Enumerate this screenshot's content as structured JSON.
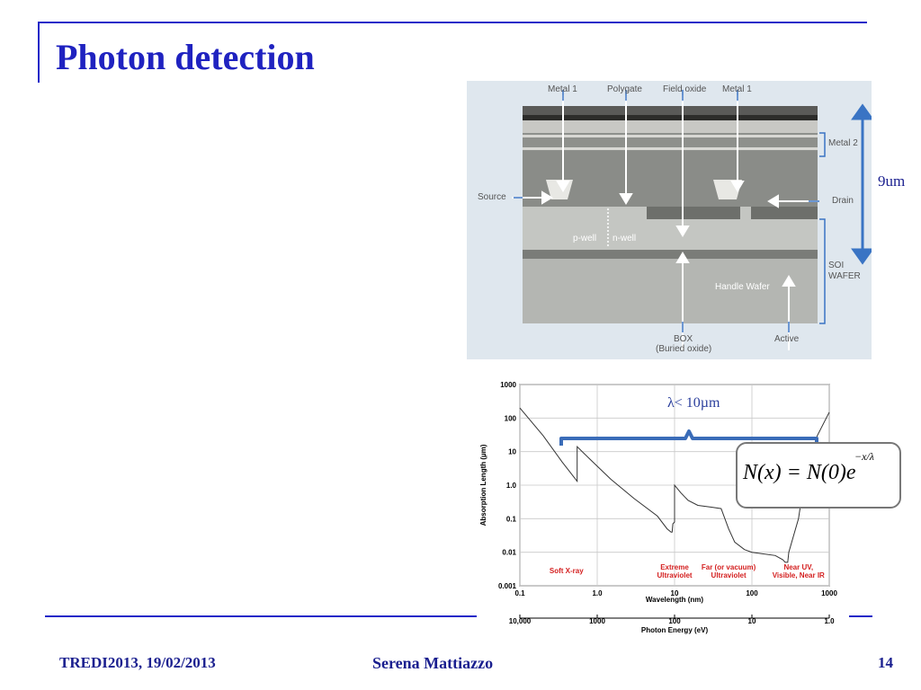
{
  "slide": {
    "title": "Photon detection",
    "footer_left": "TREDI2013, 19/02/2013",
    "footer_center": "Serena Mattiazzo",
    "page_number": "14"
  },
  "cross_section": {
    "labels_top": [
      "Metal 1",
      "Polygate",
      "Field oxide",
      "Metal 1"
    ],
    "label_metal2": "Metal 2",
    "label_source": "Source",
    "label_drain": "Drain",
    "label_pwell": "p-well",
    "label_nwell": "n-well",
    "label_soi": "SOI",
    "label_wafer": "WAFER",
    "label_handle": "Handle Wafer",
    "label_box": "BOX",
    "label_box_sub": "(Buried oxide)",
    "label_active": "Active",
    "dimension": "9um"
  },
  "chart_data": {
    "type": "line",
    "xlabel": "Wavelength (nm)",
    "x2label": "Photon Energy (eV)",
    "ylabel": "Absorption Length (µm)",
    "x_scale": "log",
    "y_scale": "log",
    "xlim": [
      0.1,
      1000
    ],
    "ylim": [
      0.001,
      1000
    ],
    "x_ticks": [
      "0.1",
      "1.0",
      "10",
      "100",
      "1000"
    ],
    "x2_ticks": [
      "10,000",
      "1000",
      "100",
      "10",
      "1.0"
    ],
    "y_ticks": [
      "1000",
      "100",
      "10",
      "1.0",
      "0.1",
      "0.01",
      "0.001"
    ],
    "regions": [
      {
        "lines": [
          "Soft X-ray"
        ],
        "x": 0.4
      },
      {
        "lines": [
          "Extreme",
          "Ultraviolet"
        ],
        "x": 10
      },
      {
        "lines": [
          "Far (or vacuum)",
          "Ultraviolet"
        ],
        "x": 50
      },
      {
        "lines": [
          "Near UV,",
          "Visible, Near IR"
        ],
        "x": 400
      }
    ],
    "series": [
      {
        "x": [
          0.1,
          0.2,
          0.35,
          0.55,
          0.55,
          0.8,
          1.5,
          3,
          6,
          8,
          9,
          9.3,
          9.5,
          10,
          10,
          12,
          15,
          20,
          30,
          40,
          50,
          60,
          80,
          100,
          200,
          250,
          270,
          290,
          300,
          400,
          500,
          700,
          1000
        ],
        "y": [
          200,
          30,
          5,
          1.3,
          14,
          6,
          1.5,
          0.4,
          0.12,
          0.05,
          0.04,
          0.04,
          0.07,
          0.08,
          1.0,
          0.6,
          0.35,
          0.25,
          0.22,
          0.2,
          0.05,
          0.02,
          0.012,
          0.01,
          0.008,
          0.006,
          0.005,
          0.005,
          0.01,
          0.1,
          3,
          30,
          150
        ]
      }
    ],
    "annotation_bracket": "λ< 10µm",
    "formula_main": "N(x) = N(0)e",
    "formula_exp": "−x/λ"
  }
}
